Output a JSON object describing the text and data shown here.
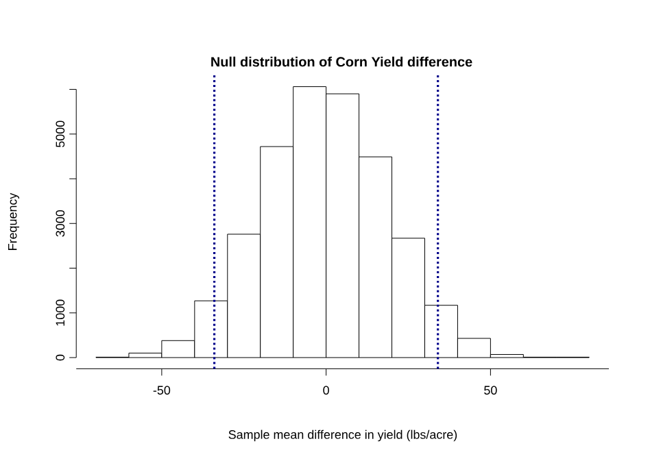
{
  "chart_data": {
    "type": "histogram",
    "title": "Null distribution of Corn Yield difference",
    "xlabel": "Sample mean difference in yield (lbs/acre)",
    "ylabel": "Frequency",
    "bins": [
      -70,
      -60,
      -50,
      -40,
      -30,
      -20,
      -10,
      0,
      10,
      20,
      30,
      40,
      50,
      60,
      70,
      80
    ],
    "values": [
      10,
      100,
      380,
      1270,
      2760,
      4720,
      6060,
      5900,
      4490,
      2670,
      1170,
      430,
      70,
      10,
      10
    ],
    "color": "#ffffff",
    "xlim": [
      -76,
      86
    ],
    "ylim": [
      -250,
      6350
    ],
    "xticks": [
      -50,
      0,
      50
    ],
    "yticks": [
      0,
      1000,
      {
        "value": 2000,
        "label": null
      },
      3000,
      {
        "value": 4000,
        "label": null
      },
      5000,
      {
        "value": 6000,
        "label": null
      }
    ],
    "ref_lines": [
      {
        "axis": "x",
        "value": -34,
        "color": "#00008b",
        "line_style": "dotted"
      },
      {
        "axis": "x",
        "value": 34,
        "color": "#00008b",
        "line_style": "dotted"
      }
    ],
    "grid": false
  }
}
